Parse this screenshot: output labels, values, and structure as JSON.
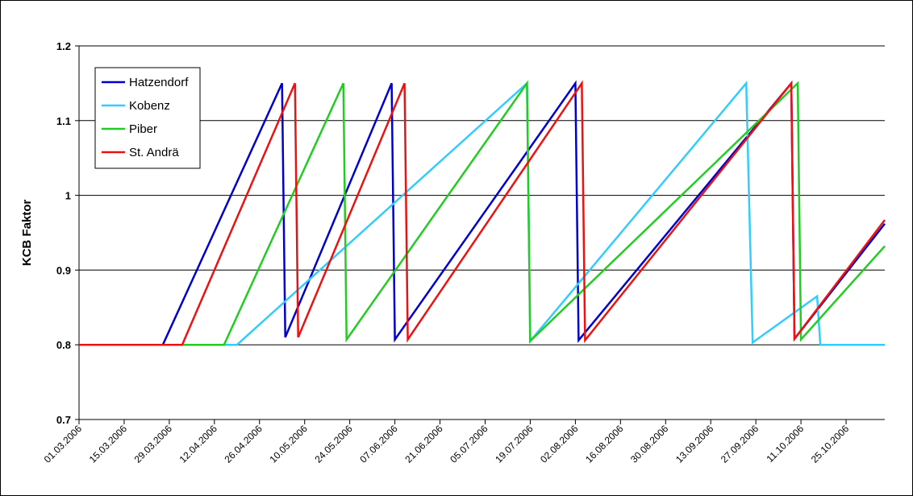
{
  "chart_data": {
    "type": "line",
    "title": "",
    "xlabel": "",
    "ylabel": "KCB Faktor",
    "ylim": [
      0.7,
      1.2
    ],
    "yticks": [
      "0.7",
      "0.8",
      "0.9",
      "1",
      "1.1",
      "1.2"
    ],
    "xlim": [
      "2006-03-01",
      "2006-11-06"
    ],
    "xtick_labels": [
      "01.03.2006",
      "15.03.2006",
      "29.03.2006",
      "12.04.2006",
      "26.04.2006",
      "10.05.2006",
      "24.05.2006",
      "07.06.2006",
      "21.06.2006",
      "05.07.2006",
      "19.07.2006",
      "02.08.2006",
      "16.08.2006",
      "30.08.2006",
      "13.09.2006",
      "27.09.2006",
      "11.10.2006",
      "25.10.2006"
    ],
    "grid": "horizontal",
    "legend_position": "top-left",
    "series": [
      {
        "name": "Hatzendorf",
        "color": "#0000cc",
        "points": [
          {
            "x": "2006-03-01",
            "y": 0.8
          },
          {
            "x": "2006-03-27",
            "y": 0.8
          },
          {
            "x": "2006-05-03",
            "y": 1.15
          },
          {
            "x": "2006-05-04",
            "y": 0.81
          },
          {
            "x": "2006-06-06",
            "y": 1.15
          },
          {
            "x": "2006-06-07",
            "y": 0.807
          },
          {
            "x": "2006-08-02",
            "y": 1.15
          },
          {
            "x": "2006-08-03",
            "y": 0.806
          },
          {
            "x": "2006-10-08",
            "y": 1.15
          },
          {
            "x": "2006-10-09",
            "y": 0.808
          },
          {
            "x": "2006-11-06",
            "y": 0.962
          }
        ]
      },
      {
        "name": "Kobenz",
        "color": "#33ccff",
        "points": [
          {
            "x": "2006-03-01",
            "y": 0.8
          },
          {
            "x": "2006-04-19",
            "y": 0.8
          },
          {
            "x": "2006-07-18",
            "y": 1.15
          },
          {
            "x": "2006-07-19",
            "y": 0.805
          },
          {
            "x": "2006-09-24",
            "y": 1.15
          },
          {
            "x": "2006-09-26",
            "y": 0.803
          },
          {
            "x": "2006-10-16",
            "y": 0.865
          },
          {
            "x": "2006-10-17",
            "y": 0.8
          },
          {
            "x": "2006-11-06",
            "y": 0.8
          }
        ]
      },
      {
        "name": "Piber",
        "color": "#22cc22",
        "points": [
          {
            "x": "2006-03-01",
            "y": 0.8
          },
          {
            "x": "2006-04-15",
            "y": 0.8
          },
          {
            "x": "2006-05-22",
            "y": 1.15
          },
          {
            "x": "2006-05-23",
            "y": 0.807
          },
          {
            "x": "2006-07-18",
            "y": 1.15
          },
          {
            "x": "2006-07-19",
            "y": 0.805
          },
          {
            "x": "2006-10-10",
            "y": 1.15
          },
          {
            "x": "2006-10-11",
            "y": 0.807
          },
          {
            "x": "2006-11-06",
            "y": 0.932
          }
        ]
      },
      {
        "name": "St. Andrä",
        "color": "#ee1111",
        "points": [
          {
            "x": "2006-03-01",
            "y": 0.8
          },
          {
            "x": "2006-04-02",
            "y": 0.8
          },
          {
            "x": "2006-05-07",
            "y": 1.15
          },
          {
            "x": "2006-05-08",
            "y": 0.81
          },
          {
            "x": "2006-06-10",
            "y": 1.15
          },
          {
            "x": "2006-06-11",
            "y": 0.807
          },
          {
            "x": "2006-08-04",
            "y": 1.15
          },
          {
            "x": "2006-08-05",
            "y": 0.806
          },
          {
            "x": "2006-10-08",
            "y": 1.15
          },
          {
            "x": "2006-10-09",
            "y": 0.808
          },
          {
            "x": "2006-11-06",
            "y": 0.967
          }
        ]
      }
    ]
  }
}
